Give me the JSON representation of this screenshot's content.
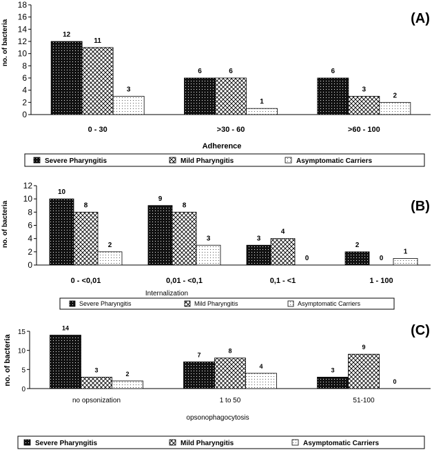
{
  "chart_data": [
    {
      "type": "bar",
      "panel_label": "(A)",
      "ylabel": "no. of bacteria",
      "xlabel": "Adherence",
      "ylim": [
        0,
        18
      ],
      "yticks": [
        0,
        2,
        4,
        6,
        8,
        10,
        12,
        14,
        16,
        18
      ],
      "categories": [
        "0 - 30",
        ">30 - 60",
        ">60 - 100"
      ],
      "series": [
        {
          "name": "Severe Pharyngitis",
          "values": [
            12,
            6,
            6
          ],
          "labels": [
            "12",
            "6",
            "6"
          ]
        },
        {
          "name": "Mild Pharyngitis",
          "values": [
            11,
            6,
            3
          ],
          "labels": [
            "11",
            "6",
            "3"
          ]
        },
        {
          "name": "Asymptomatic Carriers",
          "values": [
            3,
            1,
            2
          ],
          "labels": [
            "3",
            "1",
            "2"
          ]
        }
      ],
      "legend_position": "bottom"
    },
    {
      "type": "bar",
      "panel_label": "(B)",
      "ylabel": "no. of bacteria",
      "xlabel": "Internalization",
      "ylim": [
        0,
        12
      ],
      "yticks": [
        0,
        2,
        4,
        6,
        8,
        10,
        12
      ],
      "categories": [
        "0 - <0,01",
        "0,01 - <0,1",
        "0,1 - <1",
        "1 - 100"
      ],
      "series": [
        {
          "name": "Severe Pharyngitis",
          "values": [
            10,
            9,
            3,
            2
          ],
          "labels": [
            "10",
            "9",
            "3",
            "2"
          ]
        },
        {
          "name": "Mild Pharyngitis",
          "values": [
            8,
            8,
            4,
            0
          ],
          "labels": [
            "8",
            "8",
            "4",
            "0"
          ]
        },
        {
          "name": "Asymptomatic Carriers",
          "values": [
            2,
            3,
            0,
            1
          ],
          "labels": [
            "2",
            "3",
            "0",
            "1"
          ]
        }
      ],
      "legend_position": "bottom"
    },
    {
      "type": "bar",
      "panel_label": "(C)",
      "ylabel": "no. of bacteria",
      "xlabel": "opsonophagocytosis",
      "ylim": [
        0,
        15
      ],
      "yticks": [
        0,
        5,
        10,
        15
      ],
      "categories": [
        "no opsonization",
        "1 to 50",
        "51-100"
      ],
      "series": [
        {
          "name": "Severe Pharyngitis",
          "values": [
            14,
            7,
            3
          ],
          "labels": [
            "14",
            "7",
            "3"
          ]
        },
        {
          "name": "Mild Pharyngitis",
          "values": [
            3,
            8,
            9
          ],
          "labels": [
            "3",
            "8",
            "9"
          ]
        },
        {
          "name": "Asymptomatic Carriers",
          "values": [
            2,
            4,
            0
          ],
          "labels": [
            "2",
            "4",
            "0"
          ]
        }
      ],
      "legend_position": "bottom"
    }
  ],
  "colors": {
    "severe": "#1a1a1a",
    "mild": "#ffffff",
    "carriers": "#ffffff",
    "axis": "#000000"
  }
}
